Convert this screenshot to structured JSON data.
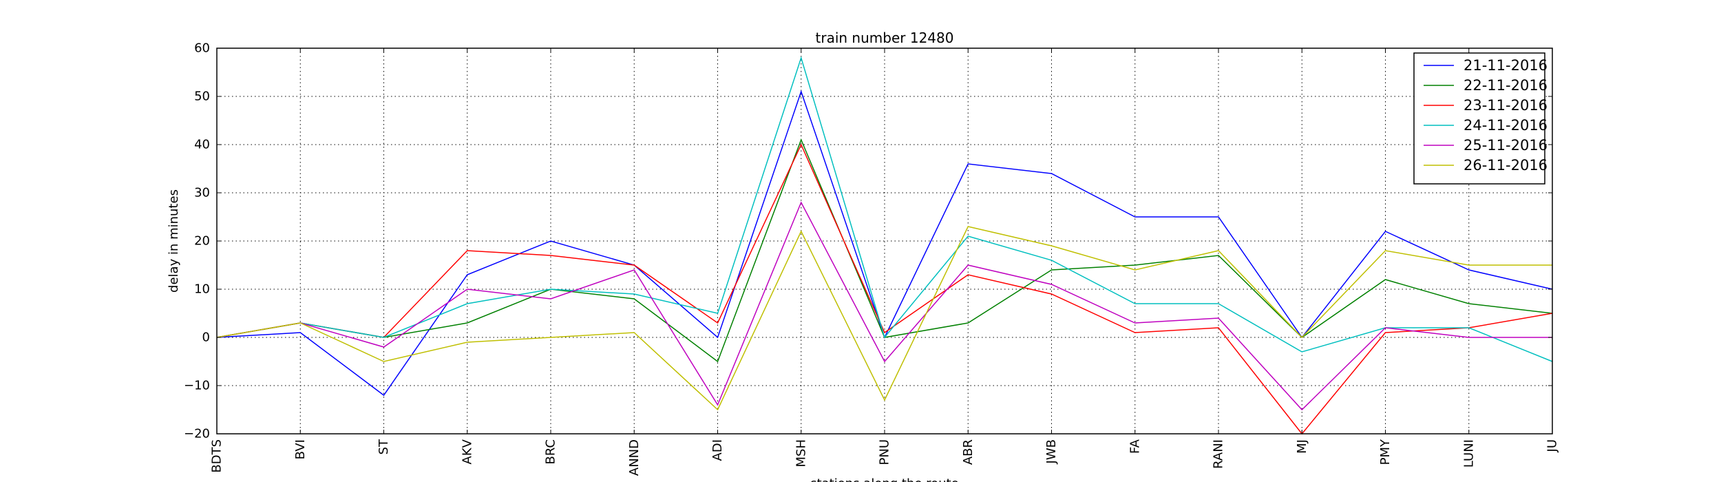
{
  "chart_data": {
    "type": "line",
    "title": "train number 12480",
    "xlabel": "stations along the route",
    "ylabel": "delay in minutes",
    "categories": [
      "BDTS",
      "BVI",
      "ST",
      "AKV",
      "BRC",
      "ANND",
      "ADI",
      "MSH",
      "PNU",
      "ABR",
      "JWB",
      "FA",
      "RANI",
      "MJ",
      "PMY",
      "LUNI",
      "JU"
    ],
    "ylim": [
      -20,
      60
    ],
    "yticks": [
      -20,
      -10,
      0,
      10,
      20,
      30,
      40,
      50,
      60
    ],
    "ytick_labels": [
      "−20",
      "−10",
      "0",
      "10",
      "20",
      "30",
      "40",
      "50",
      "60"
    ],
    "grid": true,
    "legend_position": "top-right",
    "series": [
      {
        "name": "21-11-2016",
        "color": "#0000ff",
        "values": [
          0,
          1,
          -12,
          13,
          20,
          15,
          0,
          51,
          0,
          36,
          34,
          25,
          25,
          0,
          22,
          14,
          10
        ]
      },
      {
        "name": "22-11-2016",
        "color": "#008000",
        "values": [
          0,
          3,
          0,
          3,
          10,
          8,
          -5,
          41,
          0,
          3,
          14,
          15,
          17,
          0,
          12,
          7,
          5
        ]
      },
      {
        "name": "23-11-2016",
        "color": "#ff0000",
        "values": [
          0,
          3,
          0,
          18,
          17,
          15,
          3,
          40,
          1,
          13,
          9,
          1,
          2,
          -20,
          1,
          2,
          5
        ]
      },
      {
        "name": "24-11-2016",
        "color": "#00bfbf",
        "values": [
          0,
          3,
          0,
          7,
          10,
          9,
          5,
          58,
          0,
          21,
          16,
          7,
          7,
          -3,
          2,
          2,
          -5
        ]
      },
      {
        "name": "25-11-2016",
        "color": "#bf00bf",
        "values": [
          0,
          3,
          -2,
          10,
          8,
          14,
          -14,
          28,
          -5,
          15,
          11,
          3,
          4,
          -15,
          2,
          0,
          0
        ]
      },
      {
        "name": "26-11-2016",
        "color": "#bfbf00",
        "values": [
          0,
          3,
          -5,
          -1,
          0,
          1,
          -15,
          22,
          -13,
          23,
          19,
          14,
          18,
          0,
          18,
          15,
          15
        ]
      }
    ]
  }
}
